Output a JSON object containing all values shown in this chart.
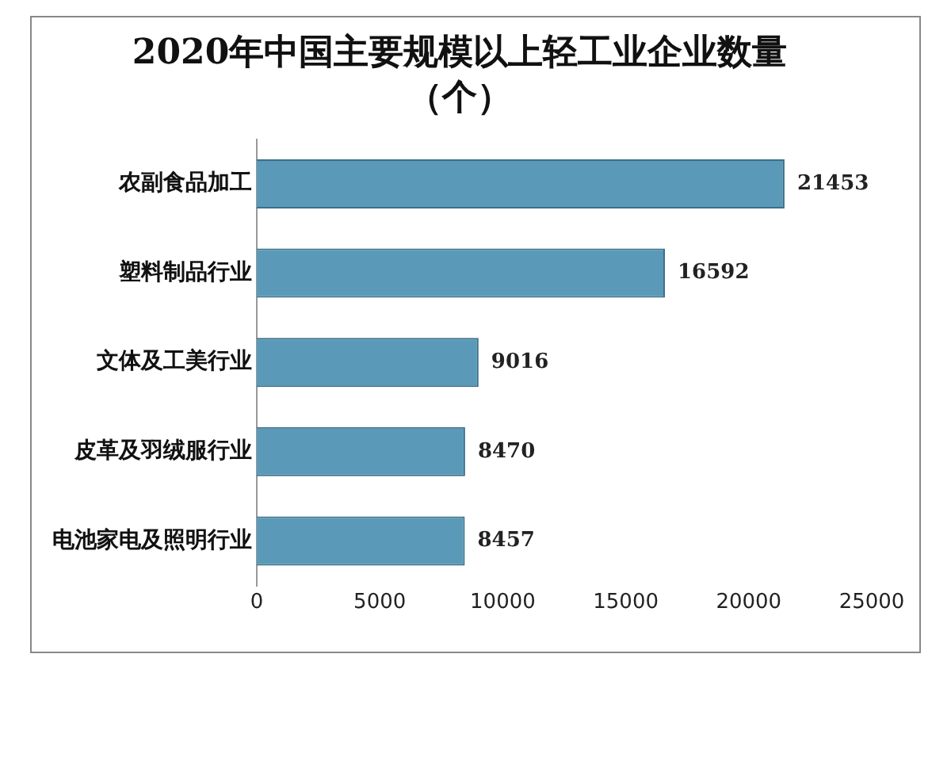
{
  "chart_data": {
    "type": "bar",
    "orientation": "horizontal",
    "title": "2020年中国主要规模以上轻工业企业数量",
    "subtitle": "（个）",
    "categories": [
      "农副食品加工",
      "塑料制品行业",
      "文体及工美行业",
      "皮革及羽绒服行业",
      "电池家电及照明行业"
    ],
    "values": [
      21453,
      16592,
      9016,
      8470,
      8457
    ],
    "color": "#5a9ab8",
    "xlim": [
      0,
      25000
    ],
    "xticks": [
      0,
      5000,
      10000,
      15000,
      20000,
      25000
    ],
    "grid": false,
    "data_labels": true,
    "legend": false
  }
}
